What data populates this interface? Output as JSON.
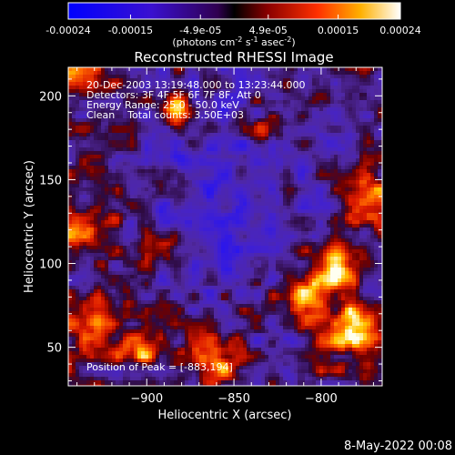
{
  "colorbar": {
    "ticks": [
      "-0.00024",
      "-0.00015",
      "-4.9e-05",
      "4.9e-05",
      "0.00015",
      "0.00024"
    ],
    "tick_values": [
      -0.00024,
      -0.00015,
      -4.9e-05,
      4.9e-05,
      0.00015,
      0.00024
    ],
    "range": [
      -0.00024,
      0.00024
    ],
    "units_prefix": "(photons cm",
    "units_exp1": "-2",
    "units_mid1": " s",
    "units_exp2": "-1",
    "units_mid2": " asec",
    "units_exp3": "-2",
    "units_suffix": ")"
  },
  "chart_data": {
    "type": "heatmap",
    "title": "Reconstructed RHESSI Image",
    "xlabel": "Heliocentric X (arcsec)",
    "ylabel": "Heliocentric Y (arcsec)",
    "xlim": [
      -945,
      -765
    ],
    "ylim": [
      27,
      217
    ],
    "xticks": [
      -900,
      -850,
      -800
    ],
    "yticks": [
      50,
      100,
      150,
      200
    ],
    "colormap": "blue-purple-red-yellow-white",
    "annotations": [
      "20-Dec-2003 13:19:48.000 to 13:23:44.000",
      "Detectors: 3F 4F 5F 6F 7F 8F, Att 0",
      "Energy Range: 25.0 - 50.0 keV",
      "Clean    Total counts: 3.50E+03"
    ],
    "peak_label": "Position of Peak = [-883,194]",
    "peak": [
      -883,
      194
    ]
  },
  "footer": {
    "timestamp": "8-May-2022 00:08"
  }
}
